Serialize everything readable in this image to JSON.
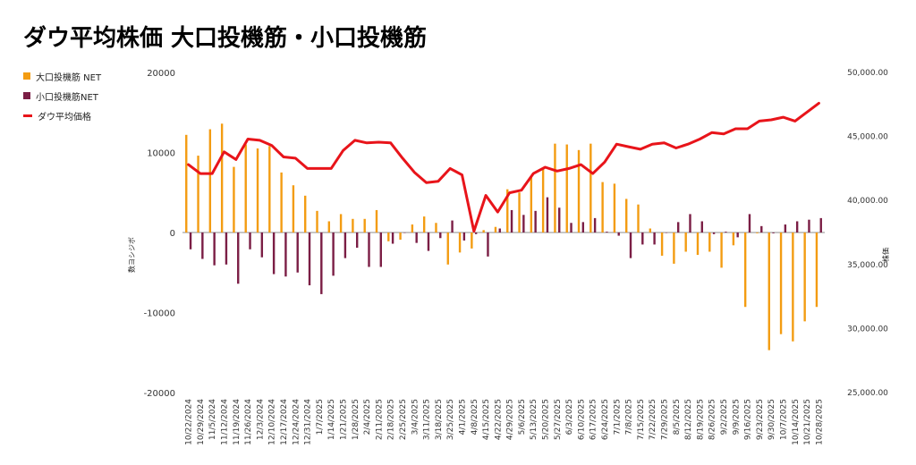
{
  "chart_data": {
    "type": "bar",
    "title": "ダウ平均株価 大口投機筋・小口投機筋",
    "ylabel_left": "数ヨシジボ",
    "ylabel_right": "株価",
    "left_axis": {
      "min": -20000,
      "max": 20000,
      "ticks": [
        20000,
        10000,
        0,
        -10000,
        -20000
      ],
      "tick_labels": [
        "20000",
        "10000",
        "0",
        "-10000",
        "-20000"
      ]
    },
    "right_axis": {
      "min": 25000,
      "max": 50000,
      "ticks": [
        50000,
        45000,
        40000,
        35000,
        30000,
        25000
      ],
      "tick_labels": [
        "50,000.00",
        "45,000.00",
        "40,000.00",
        "35,000.00",
        "30,000.00",
        "25,000.00"
      ]
    },
    "grid": false,
    "legend_position": "left",
    "categories": [
      "10/22/2024",
      "10/29/2024",
      "11/5/2024",
      "11/12/2024",
      "11/19/2024",
      "11/26/2024",
      "12/3/2024",
      "12/10/2024",
      "12/17/2024",
      "12/24/2024",
      "12/31/2024",
      "1/7/2025",
      "1/14/2025",
      "1/21/2025",
      "1/28/2025",
      "2/4/2025",
      "2/11/2025",
      "2/18/2025",
      "2/25/2025",
      "3/4/2025",
      "3/11/2025",
      "3/18/2025",
      "3/25/2025",
      "4/1/2025",
      "4/8/2025",
      "4/15/2025",
      "4/22/2025",
      "4/29/2025",
      "5/6/2025",
      "5/13/2025",
      "5/20/2025",
      "5/27/2025",
      "6/3/2025",
      "6/10/2025",
      "6/17/2025",
      "6/24/2025",
      "7/1/2025",
      "7/8/2025",
      "7/15/2025",
      "7/22/2025",
      "7/29/2025",
      "8/5/2025",
      "8/12/2025",
      "8/19/2025",
      "8/26/2025",
      "9/2/2025",
      "9/9/2025",
      "9/16/2025",
      "9/23/2025",
      "9/30/2025",
      "10/7/2025",
      "10/14/2025",
      "10/21/2025",
      "10/28/2025"
    ],
    "series": [
      {
        "name": "大口投機筋 NET",
        "type": "bar",
        "color": "#f39c12",
        "values": [
          12200,
          9600,
          12900,
          13600,
          8200,
          11000,
          10500,
          10800,
          7500,
          5900,
          4600,
          2700,
          1400,
          2300,
          1700,
          1700,
          2800,
          -1100,
          -900,
          1000,
          2000,
          1200,
          -4000,
          -2500,
          -2000,
          300,
          700,
          5400,
          5000,
          7000,
          8000,
          11100,
          11000,
          10300,
          11100,
          6300,
          6100,
          4200,
          3500,
          500,
          -2900,
          -3900,
          -2400,
          -2800,
          -2400,
          -4400,
          -1600,
          -9300,
          -100,
          -14700,
          -12700,
          -13600,
          -11100,
          -9300
        ]
      },
      {
        "name": "小口投機筋NET",
        "type": "bar",
        "color": "#7b1e45",
        "values": [
          -2100,
          -3300,
          -4100,
          -4000,
          -6400,
          -2100,
          -3100,
          -5200,
          -5500,
          -5000,
          -6600,
          -7700,
          -5400,
          -3200,
          -1900,
          -4300,
          -4300,
          -1400,
          0,
          -1300,
          -2300,
          -700,
          1500,
          -1000,
          -200,
          -3000,
          500,
          2800,
          2200,
          2700,
          4400,
          3100,
          1200,
          1300,
          1800,
          100,
          -400,
          -3200,
          -1500,
          -1500,
          0,
          1300,
          2300,
          1400,
          -200,
          100,
          -600,
          2300,
          800,
          -100,
          1000,
          1400,
          1600,
          1800
        ]
      },
      {
        "name": "ダウ平均価格",
        "type": "line",
        "color": "#e8141a",
        "axis": "right",
        "values": [
          42800,
          42100,
          42100,
          43800,
          43200,
          44800,
          44700,
          44300,
          43400,
          43300,
          42500,
          42500,
          42500,
          43900,
          44700,
          44500,
          44550,
          44500,
          43300,
          42200,
          41400,
          41500,
          42500,
          42000,
          37600,
          40400,
          39100,
          40600,
          40800,
          42100,
          42600,
          42300,
          42500,
          42800,
          42100,
          43000,
          44400,
          44200,
          44000,
          44400,
          44500,
          44100,
          44400,
          44800,
          45300,
          45200,
          45600,
          45600,
          46200,
          46300,
          46500,
          46200,
          46900,
          47600
        ]
      }
    ]
  },
  "legend": [
    {
      "label": "大口投機筋 NET",
      "color": "#f39c12",
      "kind": "box"
    },
    {
      "label": "小口投機筋NET",
      "color": "#7b1e45",
      "kind": "box"
    },
    {
      "label": "ダウ平均価格",
      "color": "#e8141a",
      "kind": "line"
    }
  ]
}
